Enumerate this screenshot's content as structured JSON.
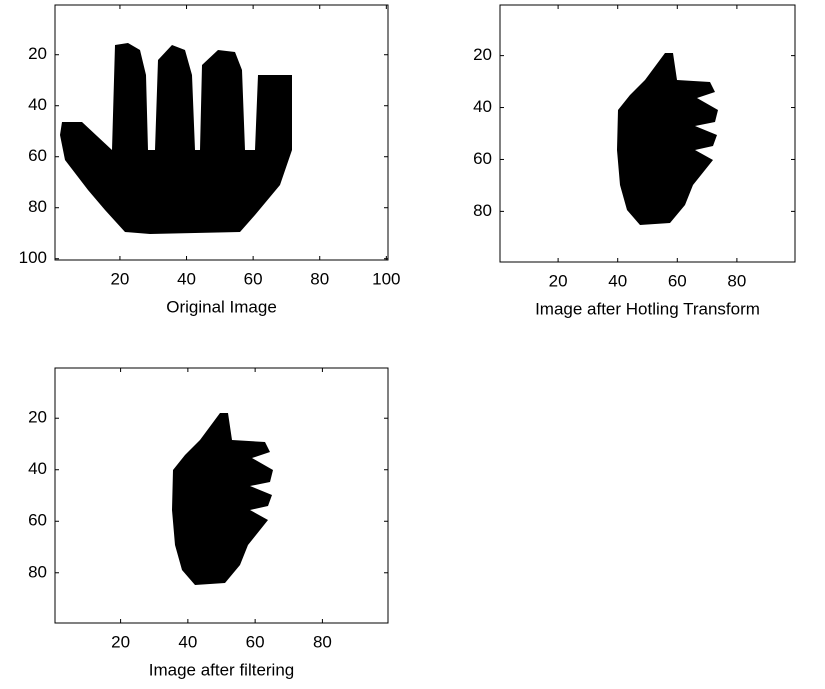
{
  "chart_data": [
    {
      "type": "image",
      "xlabel": "Original Image",
      "xlim": [
        0.5,
        100.5
      ],
      "ylim": [
        0.5,
        100.5
      ],
      "y_reversed": true,
      "xticks": [
        20,
        40,
        60,
        80,
        100
      ],
      "yticks": [
        20,
        40,
        60,
        80,
        100
      ]
    },
    {
      "type": "image",
      "xlabel": "Image after Hotling Transform",
      "xlim": [
        0.5,
        99.5
      ],
      "ylim": [
        0.5,
        99.5
      ],
      "y_reversed": true,
      "xticks": [
        20,
        40,
        60,
        80
      ],
      "yticks": [
        20,
        40,
        60,
        80
      ]
    },
    {
      "type": "image",
      "xlabel": "Image after filtering",
      "xlim": [
        0.5,
        99.5
      ],
      "ylim": [
        0.5,
        99.5
      ],
      "y_reversed": true,
      "xticks": [
        20,
        40,
        60,
        80
      ],
      "yticks": [
        20,
        40,
        60,
        80
      ]
    }
  ]
}
